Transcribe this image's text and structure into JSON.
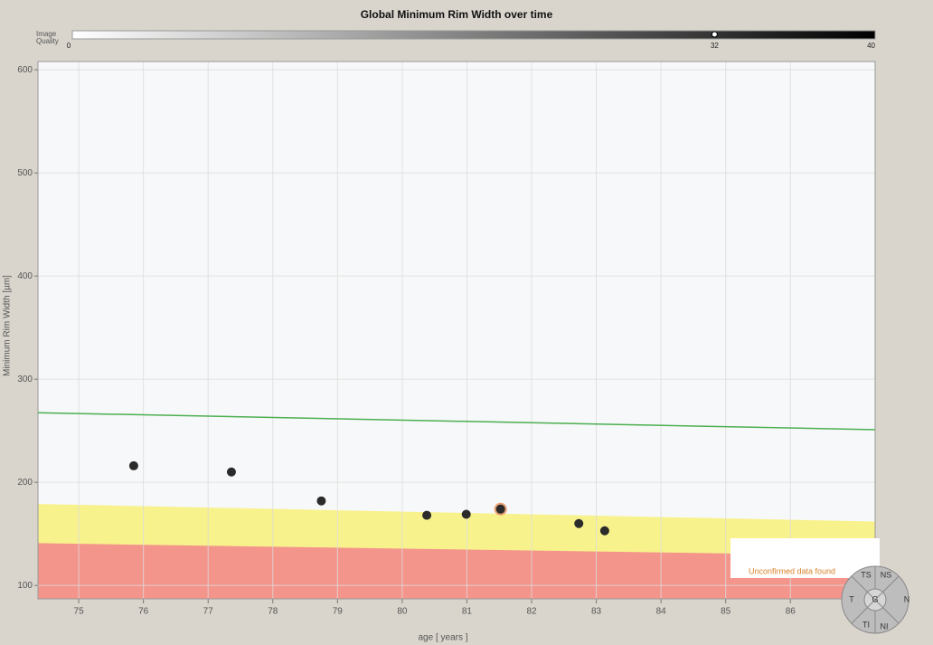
{
  "chart_data": {
    "type": "scatter",
    "title": "Global Minimum Rim Width over time",
    "x_label": "age [ years ]",
    "y_label": "Minimum Rim Width [µm]",
    "x": [
      75.85,
      77.36,
      78.75,
      80.38,
      80.99,
      81.52,
      82.73,
      83.13
    ],
    "values": [
      216,
      210,
      182,
      168,
      169,
      174,
      160,
      153
    ],
    "color": "#2b2b2b",
    "highlight_index": 5,
    "highlight_color": "#e8a070",
    "xlim": [
      74.37,
      87.31
    ],
    "ylim": [
      87,
      608
    ],
    "xticks": [
      75,
      76,
      77,
      78,
      79,
      80,
      81,
      82,
      83,
      84,
      85,
      86
    ],
    "yticks": [
      100,
      200,
      300,
      400,
      500,
      600
    ],
    "grid": true,
    "reference_line": {
      "color": "#4caf50",
      "x": [
        74.37,
        87.31
      ],
      "values": [
        267.5,
        251
      ]
    },
    "bands": [
      {
        "color": "#f8f28c",
        "x": [
          74.37,
          87.31
        ],
        "upper": [
          179,
          162
        ]
      },
      {
        "color": "#f4958c",
        "x": [
          74.37,
          87.31
        ],
        "upper": [
          141,
          129
        ]
      }
    ],
    "quality_scale": {
      "label_lines": [
        "Image",
        "Quality"
      ],
      "min": 0,
      "max": 40,
      "value": 32,
      "ticks": [
        0,
        32,
        40
      ]
    },
    "notice": "Unconfirmed data found",
    "sector_labels": [
      "TS",
      "NS",
      "T",
      "N",
      "TI",
      "NI",
      "G"
    ]
  }
}
